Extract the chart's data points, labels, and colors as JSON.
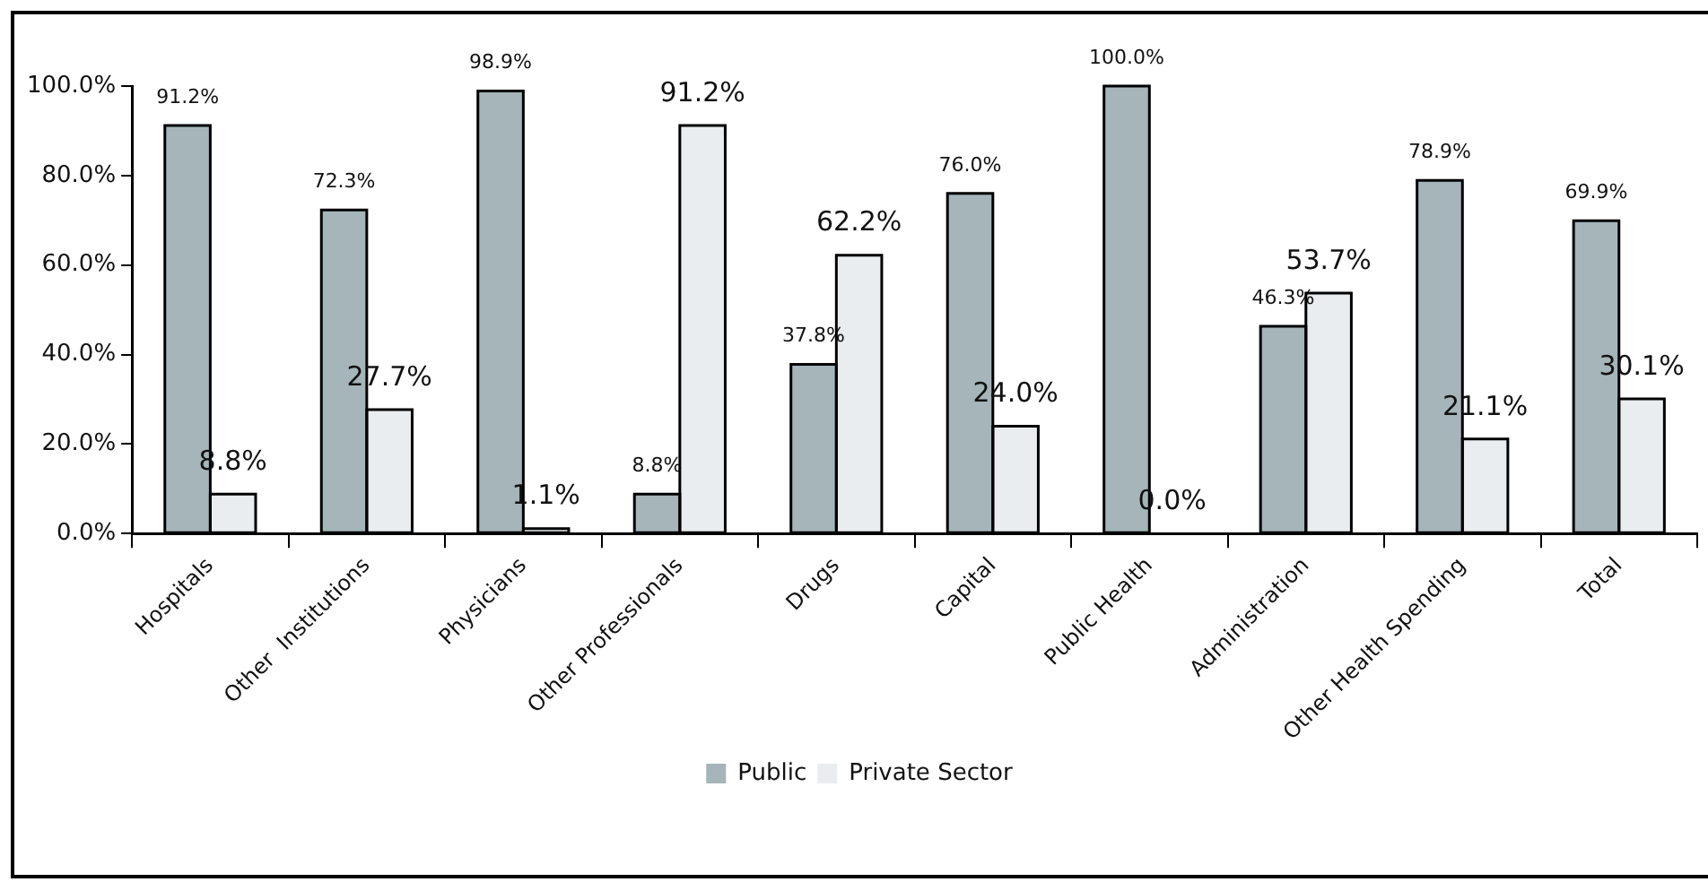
{
  "chart_data": {
    "type": "bar",
    "categories": [
      "Hospitals",
      "Other  Institutions",
      "Physicians",
      "Other Professionals",
      "Drugs",
      "Capital",
      "Public Health",
      "Administration",
      "Other Health Spending",
      "Total"
    ],
    "series": [
      {
        "name": "Public",
        "color": "#a5b5ba",
        "values": [
          91.2,
          72.3,
          98.9,
          8.8,
          37.8,
          76.0,
          100.0,
          46.3,
          78.9,
          69.9
        ],
        "value_labels": [
          "91.2%",
          "72.3%",
          "98.9%",
          "8.8%",
          "37.8%",
          "76.0%",
          "100.0%",
          "46.3%",
          "78.9%",
          "69.9%"
        ]
      },
      {
        "name": "Private Sector",
        "color": "#e9edef",
        "values": [
          8.8,
          27.7,
          1.1,
          91.2,
          62.2,
          24.0,
          0.0,
          53.7,
          21.1,
          30.1
        ],
        "value_labels": [
          "8.8%",
          "27.7%",
          "1.1%",
          "91.2%",
          "62.2%",
          "24.0%",
          "0.0%",
          "53.7%",
          "21.1%",
          "30.1%"
        ]
      }
    ],
    "ylim": [
      0,
      100
    ],
    "yticks": [
      {
        "value": 0,
        "label": "0.0%"
      },
      {
        "value": 20,
        "label": "20.0%"
      },
      {
        "value": 40,
        "label": "40.0%"
      },
      {
        "value": 60,
        "label": "60.0%"
      },
      {
        "value": 80,
        "label": "80.0%"
      },
      {
        "value": 100,
        "label": "100.0%"
      }
    ],
    "grid": false,
    "legend": "bottom"
  }
}
